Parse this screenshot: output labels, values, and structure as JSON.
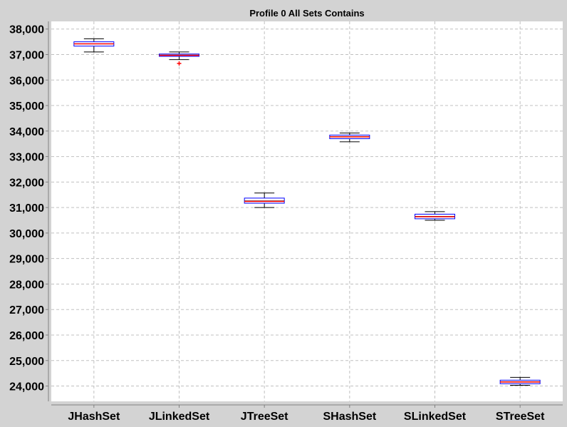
{
  "chart_data": {
    "type": "boxplot",
    "title": "Profile 0 All Sets Contains",
    "xlabel": "",
    "ylabel": "",
    "ylim": [
      23400,
      38300
    ],
    "yticks": [
      24000,
      25000,
      26000,
      27000,
      28000,
      29000,
      30000,
      31000,
      32000,
      33000,
      34000,
      35000,
      36000,
      37000,
      38000
    ],
    "ytick_labels": [
      "24,000",
      "25,000",
      "26,000",
      "27,000",
      "28,000",
      "29,000",
      "30,000",
      "31,000",
      "32,000",
      "33,000",
      "34,000",
      "35,000",
      "36,000",
      "37,000",
      "38,000"
    ],
    "grid": true,
    "categories": [
      "JHashSet",
      "JLinkedSet",
      "JTreeSet",
      "SHashSet",
      "SLinkedSet",
      "STreeSet"
    ],
    "boxes": [
      {
        "category": "JHashSet",
        "min": 37100,
        "q1": 37330,
        "median": 37420,
        "mean": 37420,
        "q3": 37500,
        "max": 37620,
        "outliers": []
      },
      {
        "category": "JLinkedSet",
        "min": 36800,
        "q1": 36930,
        "median": 36970,
        "mean": 36980,
        "q3": 37020,
        "max": 37100,
        "outliers": [
          36650
        ]
      },
      {
        "category": "JTreeSet",
        "min": 31000,
        "q1": 31170,
        "median": 31240,
        "mean": 31260,
        "q3": 31370,
        "max": 31570,
        "outliers": []
      },
      {
        "category": "SHashSet",
        "min": 33580,
        "q1": 33700,
        "median": 33770,
        "mean": 33780,
        "q3": 33840,
        "max": 33920,
        "outliers": []
      },
      {
        "category": "SLinkedSet",
        "min": 30500,
        "q1": 30560,
        "median": 30640,
        "mean": 30650,
        "q3": 30740,
        "max": 30840,
        "outliers": []
      },
      {
        "category": "STreeSet",
        "min": 24030,
        "q1": 24090,
        "median": 24160,
        "mean": 24170,
        "q3": 24230,
        "max": 24340,
        "outliers": []
      }
    ],
    "colors": {
      "background": "#d3d3d3",
      "plot_background": "#ffffff",
      "box_outline": "#0000ff",
      "whisker": "#000000",
      "median": "#ff0000",
      "mean": "#000000",
      "outlier": "#ff0000",
      "grid": "#c0c0c0"
    }
  }
}
